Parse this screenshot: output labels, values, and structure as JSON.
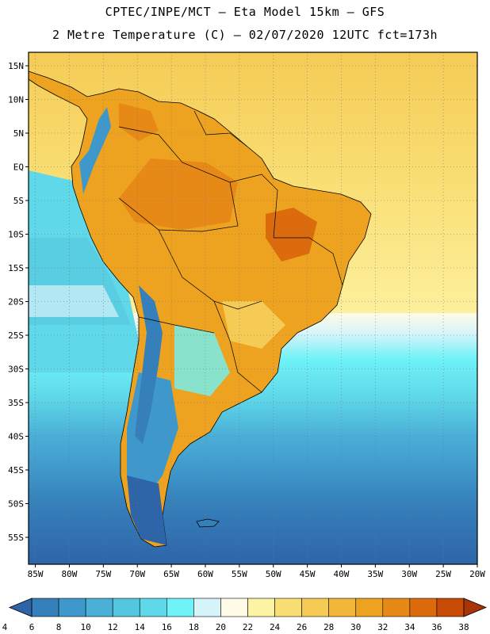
{
  "title": {
    "line1": "CPTEC/INPE/MCT –  Eta Model 15km – GFS",
    "line2": "2 Metre Temperature (C) – 02/07/2020 12UTC fct=173h"
  },
  "map": {
    "lat_labels": [
      "15N",
      "10N",
      "5N",
      "EQ",
      "5S",
      "10S",
      "15S",
      "20S",
      "25S",
      "30S",
      "35S",
      "40S",
      "45S",
      "50S",
      "55S"
    ],
    "lat_values": [
      15,
      10,
      5,
      0,
      -5,
      -10,
      -15,
      -20,
      -25,
      -30,
      -35,
      -40,
      -45,
      -50,
      -55
    ],
    "lon_labels": [
      "85W",
      "80W",
      "75W",
      "70W",
      "65W",
      "60W",
      "55W",
      "50W",
      "45W",
      "40W",
      "35W",
      "30W",
      "25W",
      "20W"
    ],
    "lon_values": [
      -85,
      -80,
      -75,
      -70,
      -65,
      -60,
      -55,
      -50,
      -45,
      -40,
      -35,
      -30,
      -25,
      -20
    ],
    "lon_range": [
      -86,
      -20
    ],
    "lat_range": [
      -59,
      17
    ]
  },
  "colorbar": {
    "ticks": [
      "4",
      "6",
      "8",
      "10",
      "12",
      "14",
      "16",
      "18",
      "20",
      "22",
      "24",
      "26",
      "28",
      "30",
      "32",
      "34",
      "36",
      "38"
    ],
    "colors": [
      "#2e64a8",
      "#3580bb",
      "#3f98cb",
      "#4bb0d8",
      "#55c6e0",
      "#5fd9e9",
      "#6ff2f8",
      "#d7f4fb",
      "#fffbe6",
      "#fdf3a4",
      "#f9de74",
      "#f5cb55",
      "#f1b63a",
      "#eda31f",
      "#e68916",
      "#dc6b0e",
      "#c84a07",
      "#a83506"
    ],
    "units": "C"
  }
}
